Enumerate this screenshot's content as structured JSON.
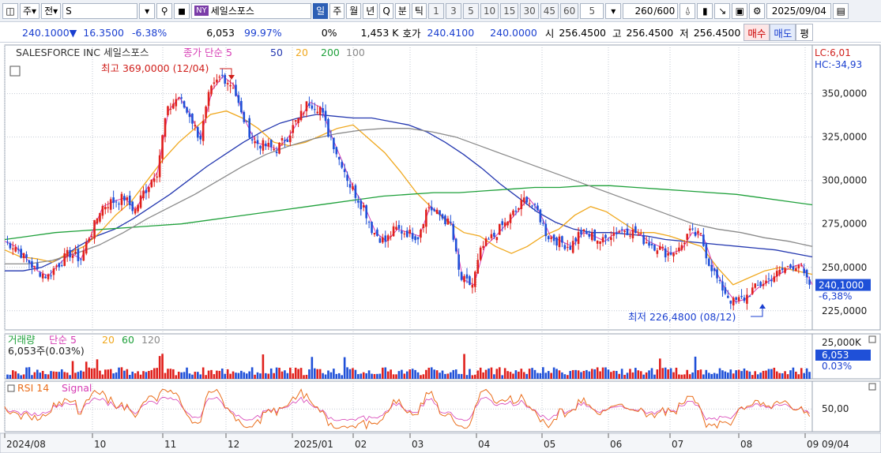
{
  "toolbar": {
    "period_tab": "주",
    "market_tab": "전",
    "symbol_input": "S",
    "market_badge": "NY",
    "stock_name": "세일스포스",
    "interval_tabs": [
      "일",
      "주",
      "월",
      "년",
      "Q",
      "분",
      "틱"
    ],
    "active_interval": "일",
    "minute_options": [
      "1",
      "3",
      "5",
      "10",
      "15",
      "30",
      "45",
      "60"
    ],
    "tick_value": "5",
    "count_current": "260",
    "count_total": "/600",
    "date": "2025/09/04"
  },
  "quote": {
    "price": "240.1000",
    "change_arrow": "▼",
    "change": "16.3500",
    "change_pct": "-6.38%",
    "volume": "6,053",
    "volume_ratio": "99.97%",
    "zero_pct": "0%",
    "amount": "1,453 K",
    "bid_label": "호가",
    "bid": "240.4100",
    "ask": "240.0000",
    "open_label": "시",
    "open": "256.4500",
    "high_label": "고",
    "high": "256.4500",
    "low_label": "저",
    "low": "256.4500",
    "buy_label": "매수",
    "sell_label": "매도",
    "eval_label": "평"
  },
  "colors": {
    "up": "#e0201c",
    "down": "#1f50d8",
    "ma5": "#d63cb4",
    "ma20": "#f0a81e",
    "ma50": "#2438b0",
    "ma200": "#1ea03a",
    "ma100": "#8a8a8a",
    "rsi": "#ea6d1a",
    "vol_up": "#e0201c",
    "vol_down": "#1f50d8"
  },
  "chart_data": [
    {
      "type": "candlestick",
      "title": "SALESFORCE INC  세일스포스",
      "legend": [
        {
          "label": "종가 단순 5",
          "color": "#d63cb4"
        },
        {
          "label": "50",
          "color": "#2438b0"
        },
        {
          "label": "20",
          "color": "#f0a81e"
        },
        {
          "label": "200",
          "color": "#1ea03a"
        },
        {
          "label": "100",
          "color": "#8a8a8a"
        }
      ],
      "y_ticks": [
        "350,0000",
        "325,0000",
        "300,0000",
        "275,0000",
        "250,0000",
        "225,0000"
      ],
      "ylim": [
        214,
        378
      ],
      "x_ticks": [
        "2024/08",
        "10",
        "11",
        "12",
        "2025/01",
        "02",
        "03",
        "04",
        "05",
        "06",
        "07",
        "08",
        "09"
      ],
      "last_date": "09/04",
      "high_annotation": "최고 369,0000 (12/04)",
      "low_annotation": "최저 226,4800 (08/12)",
      "last_price_label": "240,1000",
      "last_pct_label": "-6,38%",
      "lc_label": "LC:6,01",
      "hc_label": "HC:-34,93",
      "series": [
        {
          "name": "종가 단순 5",
          "approx_close": [
            265,
            262,
            255,
            248,
            245,
            252,
            258,
            255,
            270,
            285,
            288,
            290,
            283,
            295,
            305,
            340,
            348,
            338,
            325,
            352,
            360,
            355,
            335,
            322,
            320,
            318,
            325,
            335,
            345,
            342,
            325,
            310,
            295,
            285,
            270,
            265,
            272,
            270,
            268,
            285,
            280,
            275,
            243,
            240,
            262,
            268,
            275,
            282,
            290,
            282,
            268,
            265,
            262,
            270,
            268,
            265,
            270,
            272,
            270,
            265,
            262,
            258,
            260,
            270,
            268,
            250,
            238,
            230,
            232,
            238,
            242,
            246,
            250,
            252,
            240
          ]
        },
        {
          "name": "50",
          "approx": [
            248,
            248,
            250,
            255,
            262,
            268,
            272,
            278,
            285,
            292,
            300,
            308,
            315,
            322,
            328,
            333,
            336,
            338,
            337,
            336,
            336,
            334,
            332,
            328,
            322,
            315,
            307,
            298,
            290,
            282,
            276,
            272,
            270,
            270,
            269,
            268,
            266,
            265,
            264,
            263,
            262,
            261,
            260,
            258,
            256
          ]
        },
        {
          "name": "20",
          "approx": [
            260,
            256,
            255,
            253,
            258,
            262,
            270,
            280,
            288,
            300,
            312,
            322,
            330,
            338,
            340,
            336,
            330,
            322,
            320,
            322,
            326,
            330,
            332,
            324,
            316,
            305,
            293,
            284,
            276,
            270,
            268,
            262,
            258,
            262,
            268,
            272,
            280,
            285,
            282,
            276,
            270,
            270,
            268,
            265,
            262,
            250,
            240,
            244,
            248,
            250,
            248,
            246
          ]
        },
        {
          "name": "200",
          "approx": [
            266,
            268,
            270,
            271,
            272,
            273,
            274,
            275,
            277,
            279,
            281,
            283,
            285,
            287,
            289,
            291,
            292,
            293,
            293,
            294,
            295,
            296,
            296,
            297,
            297,
            296,
            295,
            294,
            293,
            292,
            290,
            288,
            286
          ]
        },
        {
          "name": "100",
          "approx": [
            252,
            252,
            254,
            258,
            263,
            270,
            278,
            285,
            292,
            300,
            308,
            315,
            320,
            324,
            327,
            329,
            330,
            330,
            328,
            325,
            320,
            315,
            310,
            305,
            300,
            295,
            290,
            285,
            280,
            275,
            272,
            270,
            267,
            265,
            262
          ]
        }
      ]
    },
    {
      "type": "bar",
      "title": "거래량",
      "legend": [
        {
          "label": "단순 5",
          "color": "#d63cb4"
        },
        {
          "label": "20",
          "color": "#f0a81e"
        },
        {
          "label": "60",
          "color": "#1ea03a"
        },
        {
          "label": "120",
          "color": "#8a8a8a"
        }
      ],
      "info": "6,053주(0.03%)",
      "y_tick": "25,000K",
      "last_label": "6,053",
      "last_pct": "0.03%"
    },
    {
      "type": "line",
      "title": "RSI 14",
      "signal_label": "Signal",
      "y_tick": "50,00"
    }
  ]
}
